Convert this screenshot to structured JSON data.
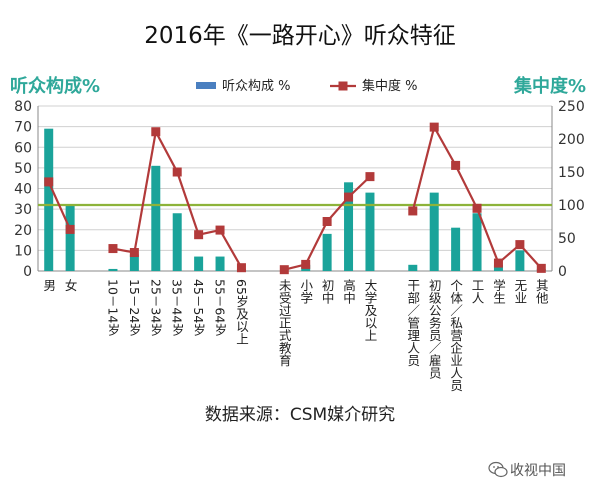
{
  "title": "2016年《一路开心》听众特征",
  "source": "数据来源：CSM媒介研究",
  "watermark": "收视中国",
  "colors": {
    "bar": "#1aa39a",
    "line": "#b23a3a",
    "marker": "#b23a3a",
    "reference": "#8db33a",
    "axis_label": "#2fa89a",
    "legend_bar": "#4a7fc0"
  },
  "chart_data": {
    "type": "bar+line",
    "categories": [
      "男",
      "女",
      "",
      "10－14岁",
      "15－24岁",
      "25－34岁",
      "35－44岁",
      "45－54岁",
      "55－64岁",
      "65岁及以上",
      "",
      "未受过正式教育",
      "小学",
      "初中",
      "高中",
      "大学及以上",
      "",
      "干部／管理人员",
      "初级公务员／雇员",
      "个体／私营企业人员",
      "工人",
      "学生",
      "无业",
      "其他"
    ],
    "series": [
      {
        "name": "听众构成 %",
        "axis": "left",
        "type": "bar",
        "values": [
          69,
          32,
          null,
          1,
          8,
          51,
          28,
          7,
          7,
          1,
          null,
          0,
          3,
          18,
          43,
          38,
          null,
          3,
          38,
          21,
          28,
          3,
          10,
          1
        ]
      },
      {
        "name": "集中度 %",
        "axis": "right",
        "type": "line",
        "values": [
          135,
          63,
          null,
          34,
          28,
          211,
          150,
          55,
          62,
          5,
          null,
          2,
          10,
          75,
          112,
          143,
          null,
          91,
          218,
          160,
          95,
          12,
          40,
          4
        ]
      }
    ],
    "reference_line": {
      "axis": "right",
      "value": 100
    },
    "ylabel_left": "听众构成%",
    "ylabel_right": "集中度%",
    "ylim_left": [
      0,
      80
    ],
    "yticks_left": [
      0,
      10,
      20,
      30,
      40,
      50,
      60,
      70,
      80
    ],
    "ylim_right": [
      0,
      250
    ],
    "yticks_right": [
      0,
      50,
      100,
      150,
      200,
      250
    ],
    "grid": true,
    "legend_position": "top"
  }
}
